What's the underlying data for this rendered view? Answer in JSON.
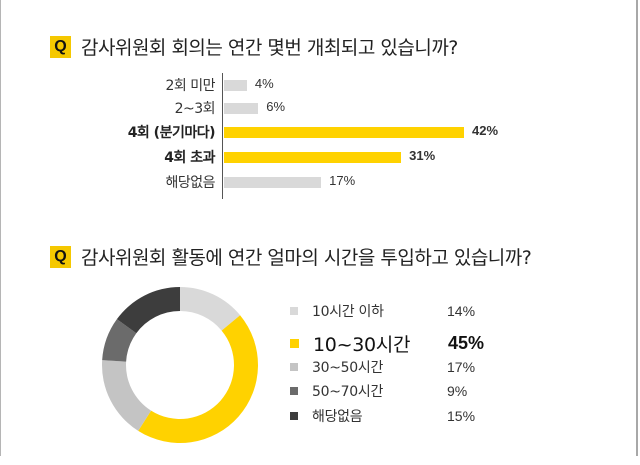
{
  "q1": {
    "badge": "Q",
    "title": "감사위원회 회의는 연간 몇번 개최되고 있습니까?"
  },
  "q2": {
    "badge": "Q",
    "title": "감사위원회 활동에 연간 얼마의 시간을 투입하고 있습니까?"
  },
  "colors": {
    "accent": "#ffd200",
    "bar_gray": "#d9d9d9",
    "seg_light": "#d9d9d9",
    "seg_mid": "#c4c4c4",
    "seg_dark": "#6b6b6b",
    "seg_darkest": "#3d3d3d"
  },
  "chart_data": [
    {
      "type": "bar",
      "orientation": "horizontal",
      "title": "감사위원회 회의는 연간 몇번 개최되고 있습니까?",
      "categories": [
        "2회 미만",
        "2~3회",
        "4회 (분기마다)",
        "4회 초과",
        "해당없음"
      ],
      "values": [
        4,
        6,
        42,
        31,
        17
      ],
      "value_labels": [
        "4%",
        "6%",
        "42%",
        "31%",
        "17%"
      ],
      "highlighted": [
        false,
        false,
        true,
        true,
        false
      ],
      "unit": "%",
      "grid": false,
      "xlabel": "",
      "ylabel": ""
    },
    {
      "type": "pie",
      "style": "donut",
      "title": "감사위원회 활동에 연간 얼마의 시간을 투입하고 있습니까?",
      "categories": [
        "10시간 이하",
        "10~30시간",
        "30~50시간",
        "50~70시간",
        "해당없음"
      ],
      "values": [
        14,
        45,
        17,
        9,
        15
      ],
      "value_labels": [
        "14%",
        "45%",
        "17%",
        "9%",
        "15%"
      ],
      "highlighted": [
        false,
        true,
        false,
        false,
        false
      ],
      "legend_position": "right"
    }
  ]
}
